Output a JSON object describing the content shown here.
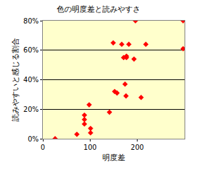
{
  "chart_data": {
    "type": "scatter",
    "title": "色の明度差と読みやすさ",
    "x_label": "明度差",
    "y_label": "読みやすいと感じる割合",
    "x": [
      26,
      72,
      88,
      88,
      88,
      98,
      101,
      101,
      141,
      149,
      152,
      157,
      167,
      171,
      177,
      177,
      174,
      176,
      182,
      193,
      196,
      208,
      218,
      297,
      297
    ],
    "values": [
      0,
      3,
      10,
      13,
      16,
      23,
      7,
      4,
      18,
      65,
      32,
      31,
      64,
      55,
      55,
      56,
      37,
      29,
      64,
      54,
      80,
      28,
      64,
      80,
      61
    ],
    "color": "#ff0000",
    "marker": "diamond",
    "xlim": [
      0,
      300
    ],
    "xticks": [
      0,
      100,
      200
    ],
    "ylim": [
      0,
      80
    ],
    "yticks": [
      {
        "value": 0,
        "label": "0%"
      },
      {
        "value": 20,
        "label": "20%"
      },
      {
        "value": 40,
        "label": "40%"
      },
      {
        "value": 60,
        "label": "60%"
      },
      {
        "value": 80,
        "label": "80%"
      }
    ],
    "grid": "y"
  }
}
